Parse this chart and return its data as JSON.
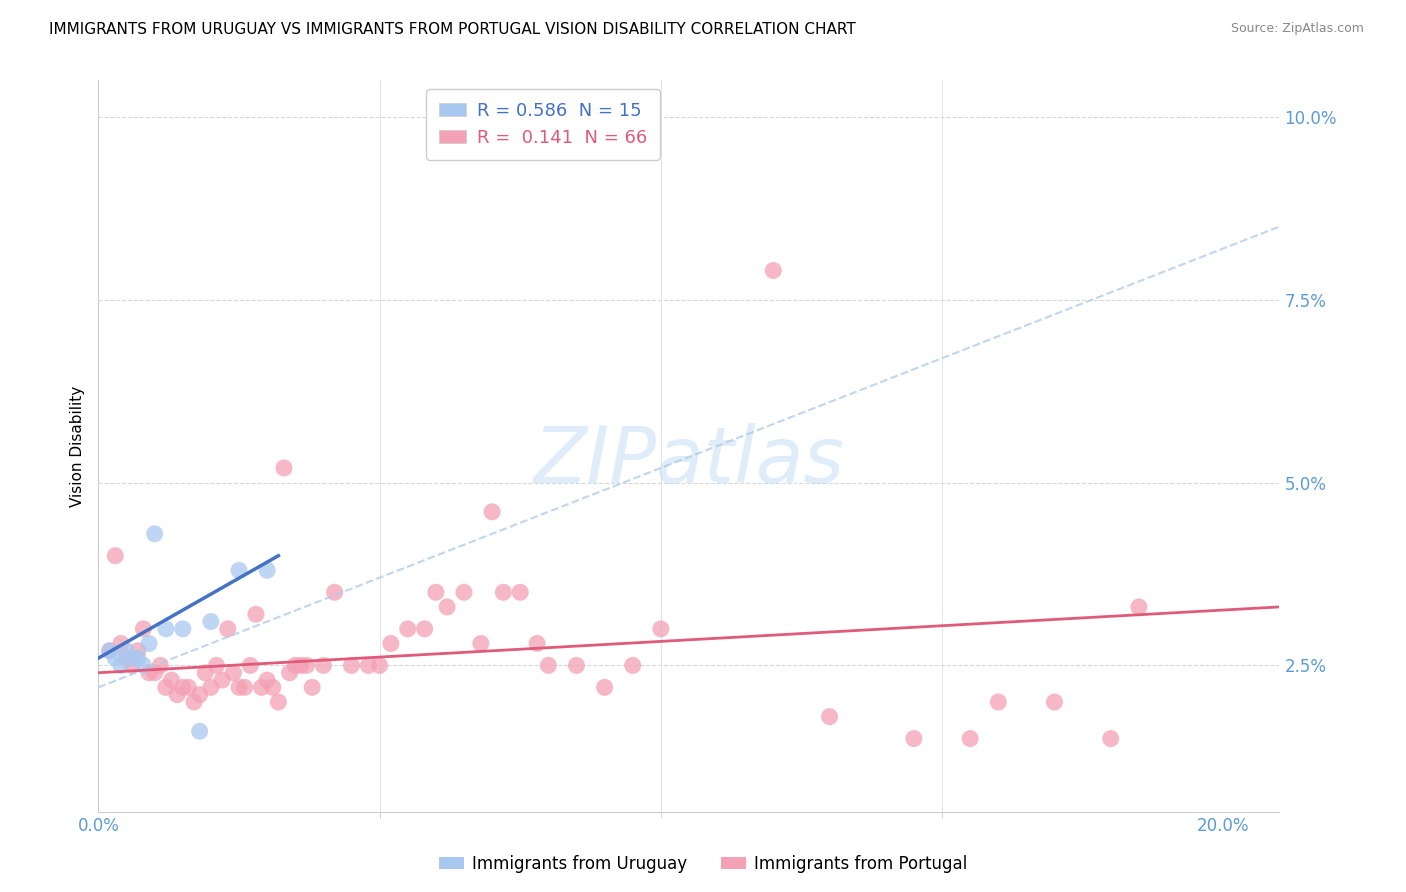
{
  "title": "IMMIGRANTS FROM URUGUAY VS IMMIGRANTS FROM PORTUGAL VISION DISABILITY CORRELATION CHART",
  "source": "Source: ZipAtlas.com",
  "ylabel": "Vision Disability",
  "watermark": "ZIPatlas",
  "xlim": [
    0.0,
    0.21
  ],
  "ylim": [
    0.005,
    0.105
  ],
  "xtick_major_labels": [
    "0.0%",
    "20.0%"
  ],
  "xtick_major_vals": [
    0.0,
    0.2
  ],
  "xtick_minor_vals": [
    0.05,
    0.1,
    0.15
  ],
  "ytick_labels": [
    "2.5%",
    "5.0%",
    "7.5%",
    "10.0%"
  ],
  "ytick_vals": [
    0.025,
    0.05,
    0.075,
    0.1
  ],
  "legend_entries": [
    {
      "label": "R = 0.586  N = 15"
    },
    {
      "label": "R =  0.141  N = 66"
    }
  ],
  "uruguay_scatter": [
    [
      0.002,
      0.027
    ],
    [
      0.003,
      0.026
    ],
    [
      0.004,
      0.025
    ],
    [
      0.005,
      0.027
    ],
    [
      0.006,
      0.026
    ],
    [
      0.007,
      0.026
    ],
    [
      0.008,
      0.025
    ],
    [
      0.009,
      0.028
    ],
    [
      0.01,
      0.043
    ],
    [
      0.012,
      0.03
    ],
    [
      0.015,
      0.03
    ],
    [
      0.02,
      0.031
    ],
    [
      0.025,
      0.038
    ],
    [
      0.03,
      0.038
    ],
    [
      0.018,
      0.016
    ]
  ],
  "portugal_scatter": [
    [
      0.002,
      0.027
    ],
    [
      0.003,
      0.04
    ],
    [
      0.004,
      0.028
    ],
    [
      0.005,
      0.026
    ],
    [
      0.006,
      0.025
    ],
    [
      0.007,
      0.027
    ],
    [
      0.008,
      0.03
    ],
    [
      0.009,
      0.024
    ],
    [
      0.01,
      0.024
    ],
    [
      0.011,
      0.025
    ],
    [
      0.012,
      0.022
    ],
    [
      0.013,
      0.023
    ],
    [
      0.014,
      0.021
    ],
    [
      0.015,
      0.022
    ],
    [
      0.016,
      0.022
    ],
    [
      0.017,
      0.02
    ],
    [
      0.018,
      0.021
    ],
    [
      0.019,
      0.024
    ],
    [
      0.02,
      0.022
    ],
    [
      0.021,
      0.025
    ],
    [
      0.022,
      0.023
    ],
    [
      0.023,
      0.03
    ],
    [
      0.024,
      0.024
    ],
    [
      0.025,
      0.022
    ],
    [
      0.026,
      0.022
    ],
    [
      0.027,
      0.025
    ],
    [
      0.028,
      0.032
    ],
    [
      0.029,
      0.022
    ],
    [
      0.03,
      0.023
    ],
    [
      0.031,
      0.022
    ],
    [
      0.032,
      0.02
    ],
    [
      0.033,
      0.052
    ],
    [
      0.034,
      0.024
    ],
    [
      0.035,
      0.025
    ],
    [
      0.036,
      0.025
    ],
    [
      0.037,
      0.025
    ],
    [
      0.038,
      0.022
    ],
    [
      0.04,
      0.025
    ],
    [
      0.042,
      0.035
    ],
    [
      0.045,
      0.025
    ],
    [
      0.048,
      0.025
    ],
    [
      0.05,
      0.025
    ],
    [
      0.052,
      0.028
    ],
    [
      0.055,
      0.03
    ],
    [
      0.058,
      0.03
    ],
    [
      0.06,
      0.035
    ],
    [
      0.062,
      0.033
    ],
    [
      0.065,
      0.035
    ],
    [
      0.068,
      0.028
    ],
    [
      0.07,
      0.046
    ],
    [
      0.072,
      0.035
    ],
    [
      0.075,
      0.035
    ],
    [
      0.078,
      0.028
    ],
    [
      0.08,
      0.025
    ],
    [
      0.085,
      0.025
    ],
    [
      0.09,
      0.022
    ],
    [
      0.095,
      0.025
    ],
    [
      0.1,
      0.03
    ],
    [
      0.12,
      0.079
    ],
    [
      0.13,
      0.018
    ],
    [
      0.145,
      0.015
    ],
    [
      0.155,
      0.015
    ],
    [
      0.16,
      0.02
    ],
    [
      0.17,
      0.02
    ],
    [
      0.18,
      0.015
    ],
    [
      0.185,
      0.033
    ]
  ],
  "uruguay_line_x": [
    0.0,
    0.032
  ],
  "uruguay_line_y": [
    0.026,
    0.04
  ],
  "portugal_line_x": [
    0.0,
    0.21
  ],
  "portugal_line_y": [
    0.024,
    0.033
  ],
  "uruguay_trend_x": [
    0.0,
    0.21
  ],
  "uruguay_trend_y": [
    0.022,
    0.085
  ],
  "scatter_color_uruguay": "#a8c8f0",
  "scatter_color_portugal": "#f4a0b5",
  "line_color_uruguay": "#4472c4",
  "line_color_portugal": "#e05a7a",
  "trend_color_dashed": "#b0cce8",
  "background_color": "#ffffff",
  "grid_color": "#d8d8d8",
  "axis_color": "#cccccc",
  "tick_color": "#5b9bd5",
  "title_fontsize": 11,
  "axis_label_fontsize": 11,
  "tick_fontsize": 12
}
